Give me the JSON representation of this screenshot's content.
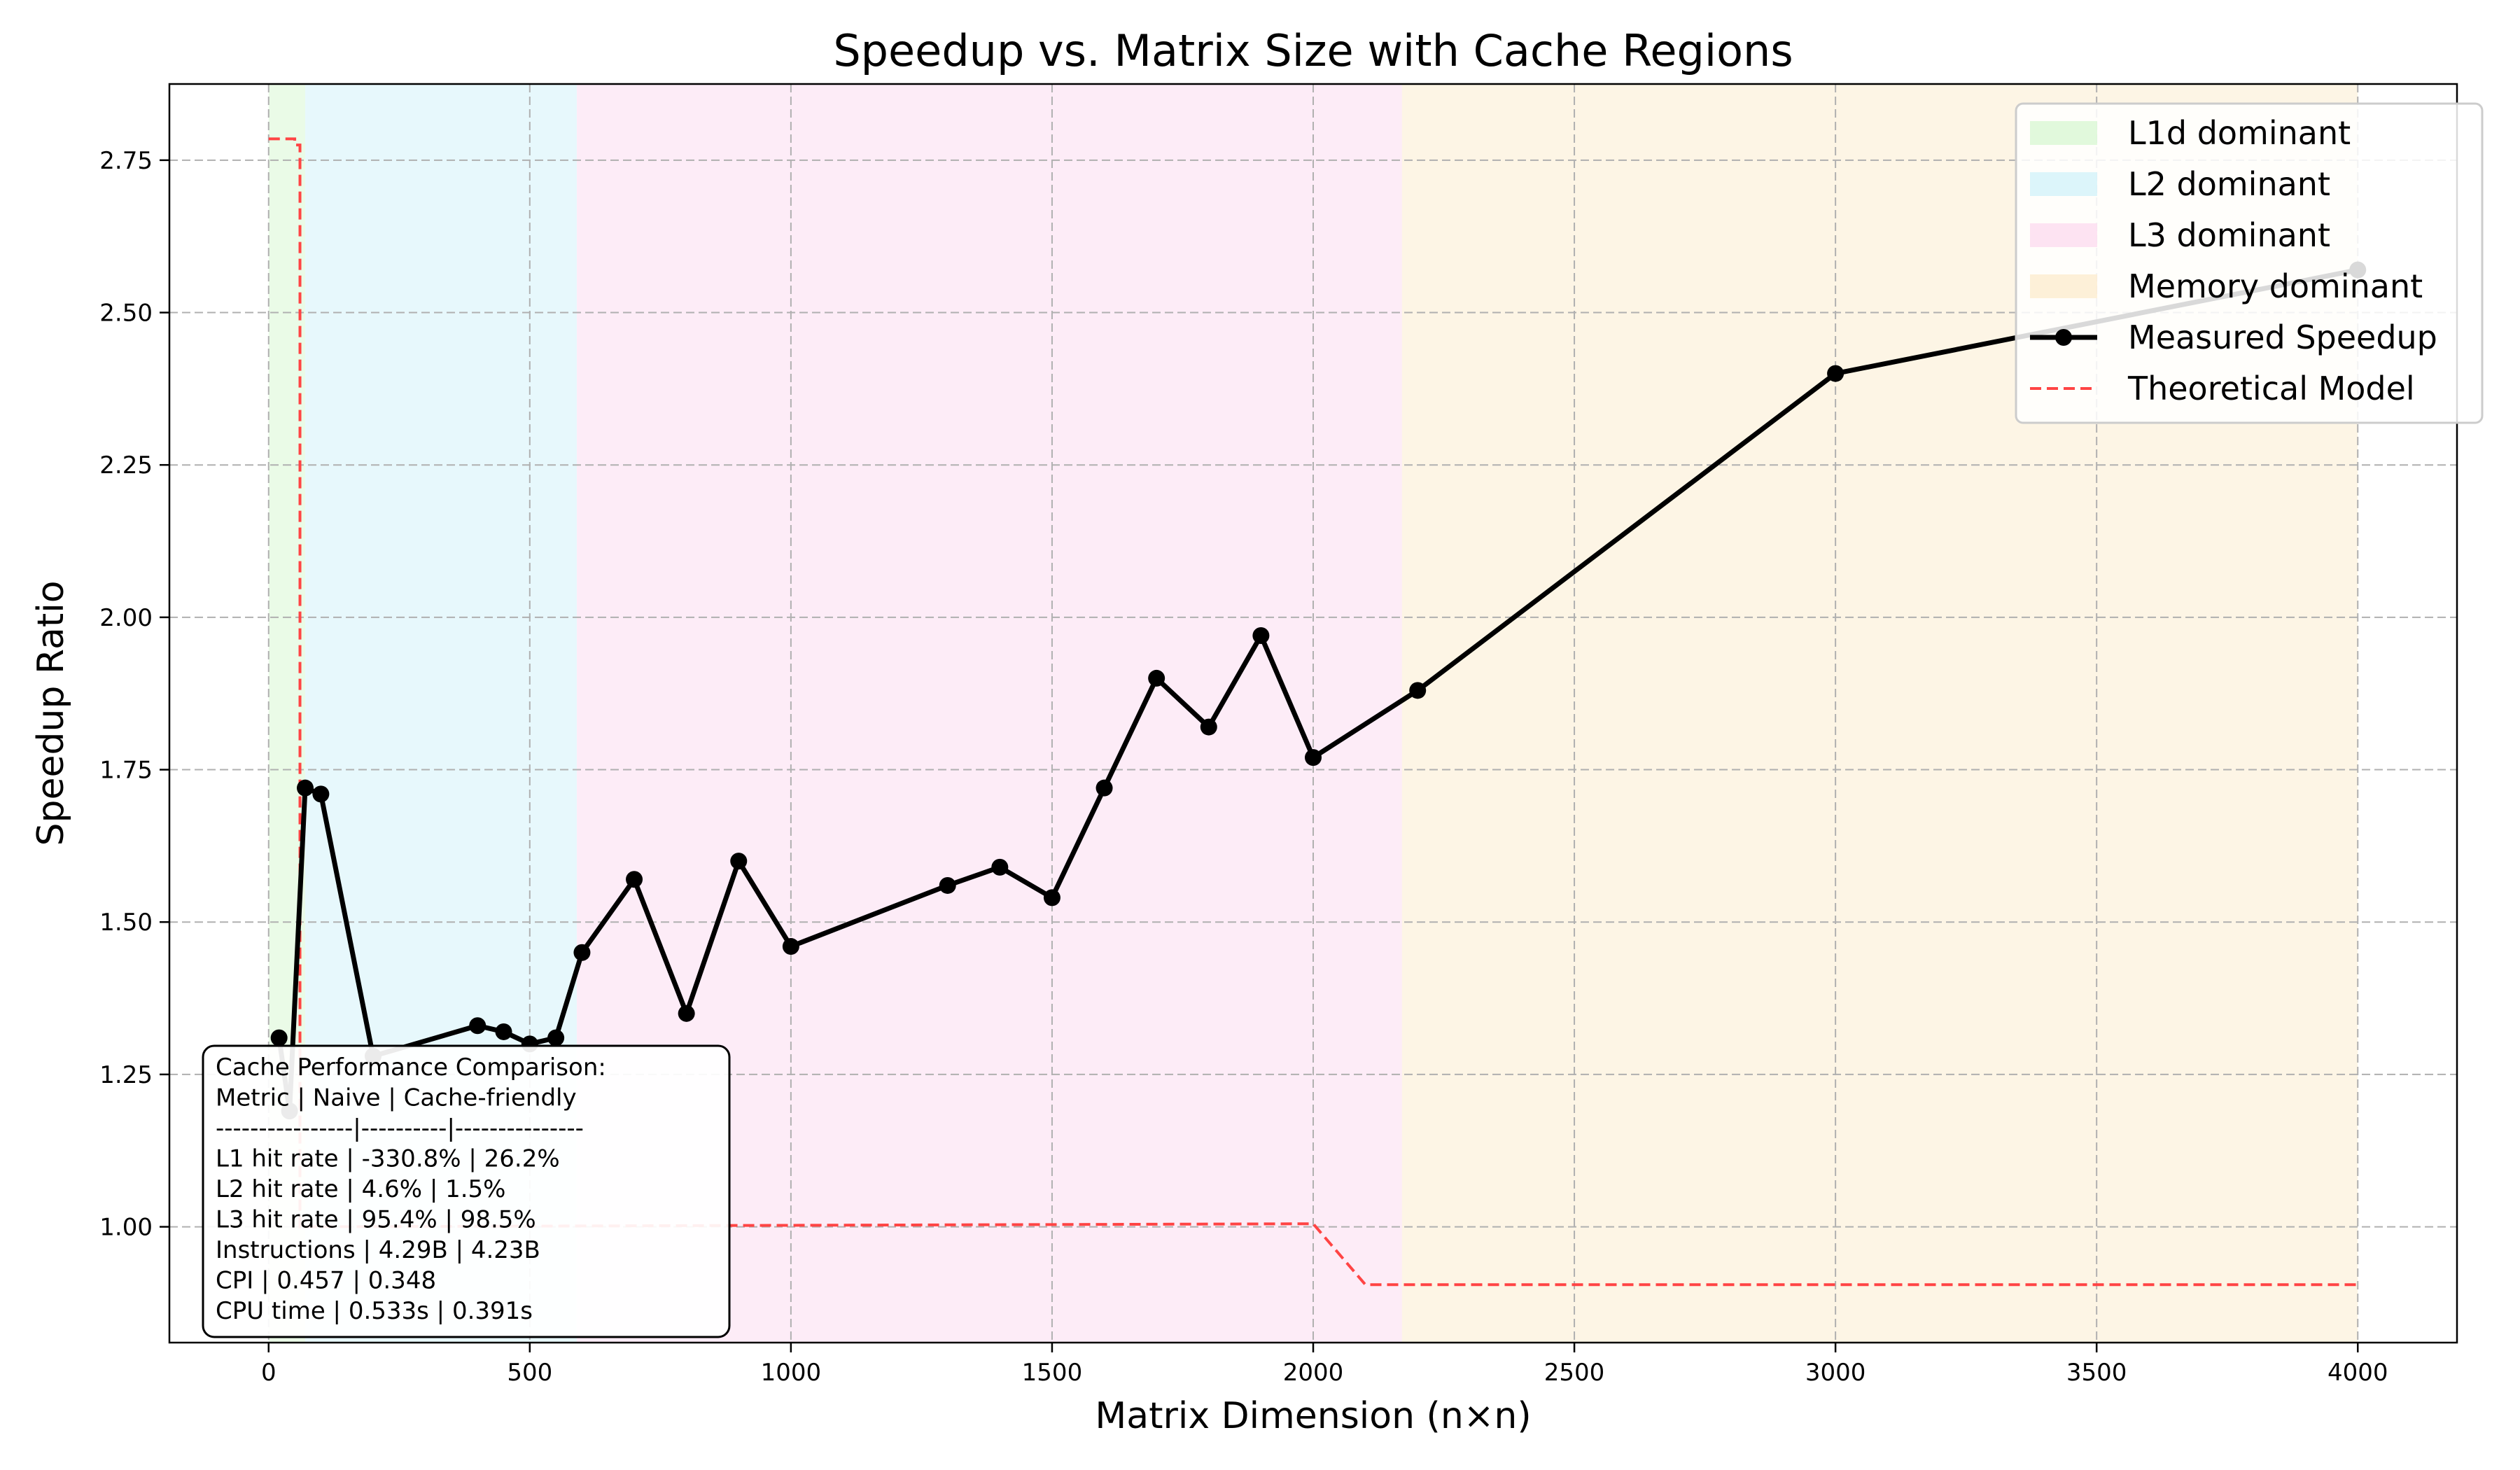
{
  "chart_data": {
    "type": "line",
    "title": "Speedup vs. Matrix Size with Cache Regions",
    "xlabel": "Matrix Dimension (n×n)",
    "ylabel": "Speedup Ratio",
    "xlim": [
      -190,
      4190
    ],
    "ylim": [
      0.81,
      2.875
    ],
    "x_ticks": [
      0,
      500,
      1000,
      1500,
      2000,
      2500,
      3000,
      3500,
      4000
    ],
    "y_ticks": [
      1.0,
      1.25,
      1.5,
      1.75,
      2.0,
      2.25,
      2.5,
      2.75
    ],
    "x_tick_labels": [
      "0",
      "500",
      "1000",
      "1500",
      "2000",
      "2500",
      "3000",
      "3500",
      "4000"
    ],
    "y_tick_labels": [
      "1.00",
      "1.25",
      "1.50",
      "1.75",
      "2.00",
      "2.25",
      "2.50",
      "2.75"
    ],
    "grid": true,
    "legend_position": "top-right",
    "regions": [
      {
        "name": "L1d dominant",
        "x_start": 0,
        "x_end": 70,
        "color": "#d9f7d4"
      },
      {
        "name": "L2 dominant",
        "x_start": 70,
        "x_end": 590,
        "color": "#d3f3fa"
      },
      {
        "name": "L3 dominant",
        "x_start": 590,
        "x_end": 2170,
        "color": "#fcdcf0"
      },
      {
        "name": "Memory dominant",
        "x_start": 2170,
        "x_end": 4000,
        "color": "#fcecd0"
      }
    ],
    "series": [
      {
        "name": "Measured Speedup",
        "color": "#000000",
        "marker": "circle",
        "x": [
          20,
          40,
          70,
          100,
          200,
          400,
          450,
          500,
          550,
          600,
          700,
          800,
          900,
          1000,
          1300,
          1400,
          1500,
          1600,
          1700,
          1800,
          1900,
          2000,
          2200,
          3000,
          4000
        ],
        "y": [
          1.31,
          1.19,
          1.72,
          1.71,
          1.28,
          1.33,
          1.32,
          1.3,
          1.31,
          1.45,
          1.57,
          1.35,
          1.6,
          1.46,
          1.56,
          1.59,
          1.54,
          1.72,
          1.9,
          1.82,
          1.97,
          1.77,
          1.88,
          2.4,
          2.57
        ]
      },
      {
        "name": "Theoretical Model",
        "color": "#ff4444",
        "style": "dashed",
        "x": [
          0,
          50,
          50,
          60,
          60,
          2000,
          2100,
          4000
        ],
        "y": [
          2.785,
          2.785,
          2.775,
          2.775,
          1.0,
          1.005,
          0.905,
          0.905
        ]
      }
    ],
    "annotation": {
      "lines": [
        "Cache Performance Comparison:",
        "Metric           | Naive    | Cache-friendly",
        "----------------|----------|---------------",
        "L1 hit rate      | -330.8%  | 26.2%",
        "L2 hit rate      | 4.6%      | 1.5%",
        "L3 hit rate      | 95.4%     | 98.5%",
        "Instructions     | 4.29B     | 4.23B",
        "CPI              | 0.457     | 0.348",
        "CPU time         | 0.533s    | 0.391s"
      ]
    }
  }
}
